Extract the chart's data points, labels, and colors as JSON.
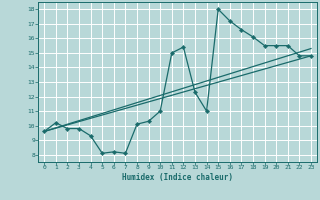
{
  "title": "",
  "xlabel": "Humidex (Indice chaleur)",
  "bg_color": "#b8d8d8",
  "line_color": "#1a6b6b",
  "grid_color": "#ffffff",
  "xlim": [
    -0.5,
    23.5
  ],
  "ylim": [
    7.5,
    18.5
  ],
  "xticks": [
    0,
    1,
    2,
    3,
    4,
    5,
    6,
    7,
    8,
    9,
    10,
    11,
    12,
    13,
    14,
    15,
    16,
    17,
    18,
    19,
    20,
    21,
    22,
    23
  ],
  "yticks": [
    8,
    9,
    10,
    11,
    12,
    13,
    14,
    15,
    16,
    17,
    18
  ],
  "curve_x": [
    0,
    1,
    2,
    3,
    4,
    5,
    6,
    7,
    8,
    9,
    10,
    11,
    12,
    13,
    14,
    15,
    16,
    17,
    18,
    19,
    20,
    21,
    22,
    23
  ],
  "curve_y": [
    9.6,
    10.2,
    9.8,
    9.8,
    9.3,
    8.1,
    8.2,
    8.1,
    10.1,
    10.3,
    11.0,
    15.0,
    15.4,
    12.3,
    11.0,
    18.0,
    17.2,
    16.6,
    16.1,
    15.5,
    15.5,
    15.5,
    14.8,
    14.8
  ],
  "line1_x": [
    0,
    23
  ],
  "line1_y": [
    9.6,
    15.3
  ],
  "line2_x": [
    0,
    23
  ],
  "line2_y": [
    9.6,
    14.8
  ]
}
